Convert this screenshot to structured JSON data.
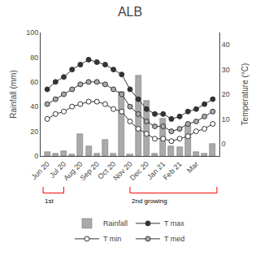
{
  "chart_data": {
    "type": "bar",
    "title": "ALB",
    "categories": [
      "Jun 20",
      null,
      "Jul 20",
      null,
      "Aug 20",
      null,
      "Sep 20",
      null,
      "Oct 20",
      null,
      "Nov 20",
      null,
      "Dec 20",
      null,
      "Jan 21",
      null,
      "Feb 21",
      null,
      "Mar",
      null,
      null
    ],
    "ylabel": "Rainfall (mm)",
    "y2label": "Temperature (°C)",
    "series": [
      {
        "name": "Rainfall",
        "type": "bar",
        "color": "#aaaaaa",
        "values": [
          3,
          2,
          4,
          1,
          18,
          8,
          2,
          13,
          2,
          52,
          1,
          65,
          45,
          2,
          30,
          8,
          7,
          25,
          3,
          2,
          10
        ]
      },
      {
        "name": "T max",
        "type": "line",
        "axis": "y2",
        "color": "#333333",
        "marker": "circle",
        "values": [
          22,
          25,
          27,
          30,
          32,
          34,
          33,
          32,
          30,
          28,
          22,
          18,
          14,
          12,
          12,
          10,
          11,
          13,
          14,
          16,
          18
        ]
      },
      {
        "name": "T min",
        "type": "line",
        "axis": "y2",
        "color": "#ffffff",
        "marker": "circle",
        "values": [
          10,
          12,
          13,
          15,
          16,
          17,
          17,
          16,
          14,
          13,
          9,
          6,
          4,
          2,
          2,
          1,
          2,
          3,
          5,
          6,
          8
        ]
      },
      {
        "name": "T med",
        "type": "line",
        "axis": "y2",
        "color": "#aaaaaa",
        "marker": "circle",
        "values": [
          16,
          18,
          20,
          22,
          24,
          25,
          25,
          24,
          22,
          20,
          15,
          12,
          9,
          7,
          7,
          5,
          6,
          8,
          9,
          11,
          13
        ]
      }
    ],
    "xlim": [
      -0.8,
      20.8
    ],
    "ylim": [
      0,
      100
    ],
    "yticks": [
      0,
      20,
      40,
      60,
      80,
      100
    ],
    "y2lim": [
      -5,
      45
    ],
    "y2ticks": [
      0,
      10,
      20,
      30,
      40
    ],
    "grid": false,
    "legend": "bottom",
    "annotations": [
      {
        "text": "1st",
        "span": [
          -0.5,
          2.0
        ],
        "color": "red"
      },
      {
        "text": "2nd growing",
        "span": [
          10.0,
          20.5
        ],
        "color": "red"
      }
    ]
  }
}
